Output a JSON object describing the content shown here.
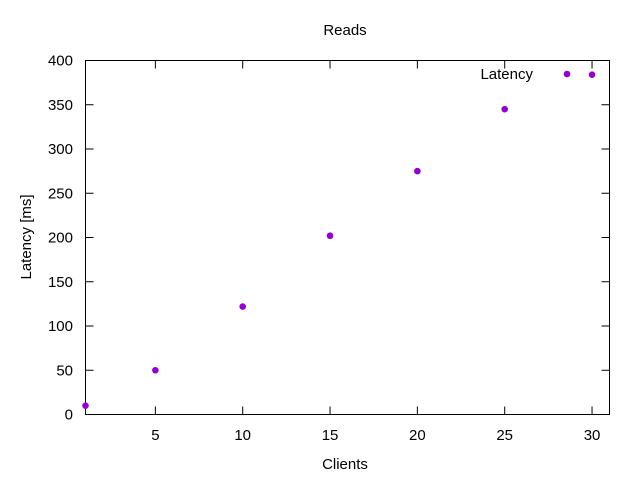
{
  "chart_data": {
    "type": "scatter",
    "title": "Reads",
    "xlabel": "Clients",
    "ylabel": "Latency [ms]",
    "xlim": [
      1,
      31
    ],
    "ylim": [
      0,
      400
    ],
    "xticks": [
      5,
      10,
      15,
      20,
      25,
      30
    ],
    "yticks": [
      0,
      50,
      100,
      150,
      200,
      250,
      300,
      350,
      400
    ],
    "grid": false,
    "legend_position": "top-right",
    "series": [
      {
        "name": "Latency",
        "color": "#9400d3",
        "marker": "filled-circle",
        "x": [
          1,
          5,
          10,
          15,
          20,
          25,
          30
        ],
        "y": [
          10,
          50,
          122,
          202,
          275,
          345,
          384
        ]
      }
    ]
  }
}
